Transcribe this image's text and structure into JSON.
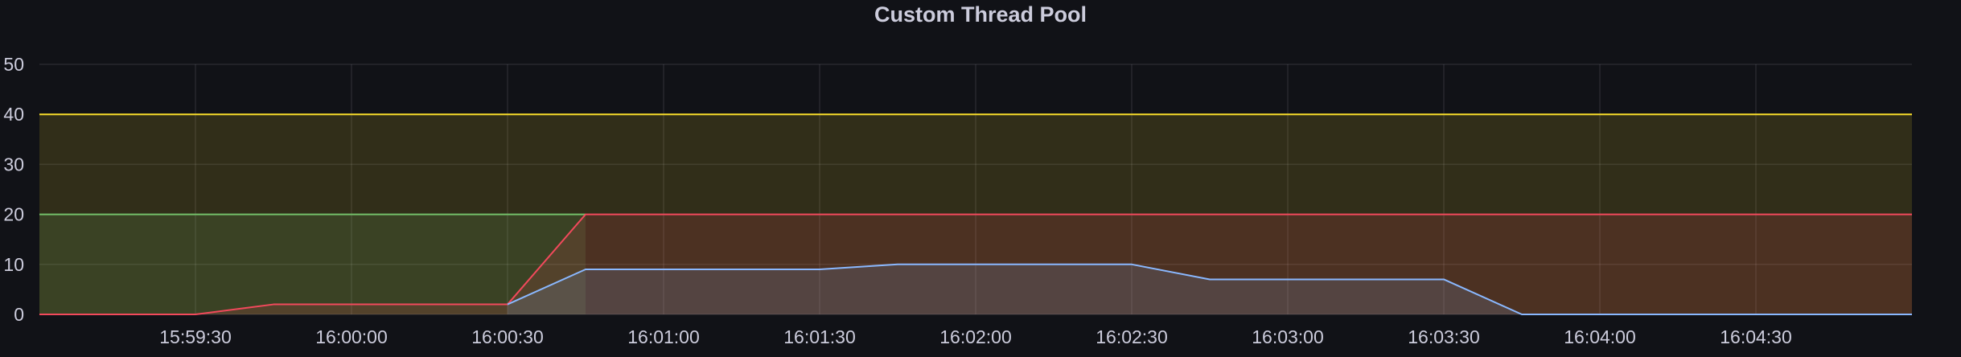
{
  "panel": {
    "title": "Custom Thread Pool"
  },
  "chart_data": {
    "type": "area",
    "title": "Custom Thread Pool",
    "xlabel": "",
    "ylabel": "",
    "x_range": [
      "15:59:00",
      "16:05:00"
    ],
    "ylim": [
      0,
      50
    ],
    "y_ticks": [
      0,
      10,
      20,
      30,
      40,
      50
    ],
    "x_ticks": [
      "15:59:30",
      "16:00:00",
      "16:00:30",
      "16:01:00",
      "16:01:30",
      "16:02:00",
      "16:02:30",
      "16:03:00",
      "16:03:30",
      "16:04:00",
      "16:04:30"
    ],
    "grid": true,
    "legend": "none",
    "series": [
      {
        "color": "#fade2a",
        "fill": "#fade2a",
        "x": [
          "15:59:00",
          "16:05:00"
        ],
        "values": [
          40,
          40
        ]
      },
      {
        "color": "#73bf69",
        "fill": "#73bf69",
        "x": [
          "15:59:00",
          "16:00:30",
          "16:00:45"
        ],
        "values": [
          20,
          20,
          20
        ]
      },
      {
        "color": "#f2495c",
        "fill": "#f2495c",
        "x": [
          "15:59:00",
          "15:59:30",
          "15:59:45",
          "16:00:30",
          "16:00:45",
          "16:05:00"
        ],
        "values": [
          0,
          0,
          2,
          2,
          20,
          20
        ]
      },
      {
        "color": "#8ab8ff",
        "fill": "#8ab8ff",
        "x": [
          "16:00:30",
          "16:00:45",
          "16:01:30",
          "16:01:45",
          "16:02:30",
          "16:02:45",
          "16:03:30",
          "16:03:45",
          "16:05:00"
        ],
        "values": [
          2,
          9,
          9,
          10,
          10,
          7,
          7,
          0,
          0
        ]
      }
    ]
  }
}
